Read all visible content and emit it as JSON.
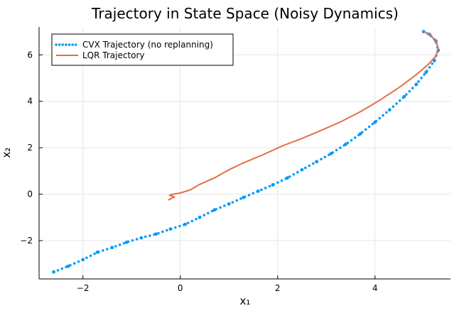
{
  "chart_data": {
    "type": "line",
    "title": "Trajectory in State Space (Noisy Dynamics)",
    "xlabel": "x₁",
    "ylabel": "x₂",
    "xlim": [
      -2.9,
      5.55
    ],
    "ylim": [
      -3.65,
      7.2
    ],
    "xticks": [
      -2,
      0,
      2,
      4
    ],
    "yticks": [
      -2,
      0,
      2,
      4,
      6
    ],
    "grid": true,
    "legend_position": "top-left",
    "series": [
      {
        "name": "CVX Trajectory (no replanning)",
        "color": "#009AF9",
        "style": "dotted-markers",
        "points": [
          [
            -2.6,
            -3.35
          ],
          [
            -2.3,
            -3.1
          ],
          [
            -2.0,
            -2.82
          ],
          [
            -1.7,
            -2.5
          ],
          [
            -1.4,
            -2.3
          ],
          [
            -1.1,
            -2.07
          ],
          [
            -0.8,
            -1.88
          ],
          [
            -0.5,
            -1.72
          ],
          [
            -0.2,
            -1.5
          ],
          [
            0.1,
            -1.3
          ],
          [
            0.4,
            -1.0
          ],
          [
            0.7,
            -0.68
          ],
          [
            1.0,
            -0.42
          ],
          [
            1.3,
            -0.14
          ],
          [
            1.6,
            0.13
          ],
          [
            1.9,
            0.4
          ],
          [
            2.2,
            0.7
          ],
          [
            2.5,
            1.05
          ],
          [
            2.8,
            1.4
          ],
          [
            3.1,
            1.75
          ],
          [
            3.4,
            2.15
          ],
          [
            3.7,
            2.6
          ],
          [
            4.0,
            3.1
          ],
          [
            4.3,
            3.63
          ],
          [
            4.6,
            4.2
          ],
          [
            4.85,
            4.73
          ],
          [
            5.05,
            5.25
          ],
          [
            5.22,
            5.75
          ],
          [
            5.3,
            6.2
          ],
          [
            5.25,
            6.6
          ],
          [
            5.12,
            6.88
          ],
          [
            5.0,
            7.0
          ]
        ]
      },
      {
        "name": "LQR Trajectory",
        "color": "#E26F46",
        "style": "solid",
        "points": [
          [
            5.0,
            7.0
          ],
          [
            5.12,
            6.88
          ],
          [
            5.25,
            6.6
          ],
          [
            5.3,
            6.25
          ],
          [
            5.25,
            5.95
          ],
          [
            5.1,
            5.6
          ],
          [
            4.85,
            5.15
          ],
          [
            4.5,
            4.6
          ],
          [
            4.1,
            4.05
          ],
          [
            3.7,
            3.55
          ],
          [
            3.3,
            3.12
          ],
          [
            2.9,
            2.75
          ],
          [
            2.5,
            2.4
          ],
          [
            2.1,
            2.08
          ],
          [
            1.7,
            1.7
          ],
          [
            1.3,
            1.35
          ],
          [
            1.0,
            1.05
          ],
          [
            0.7,
            0.7
          ],
          [
            0.4,
            0.42
          ],
          [
            0.2,
            0.18
          ],
          [
            0.0,
            0.05
          ],
          [
            -0.15,
            0.0
          ],
          [
            -0.22,
            -0.05
          ],
          [
            -0.12,
            -0.12
          ],
          [
            -0.25,
            -0.25
          ]
        ]
      }
    ]
  }
}
